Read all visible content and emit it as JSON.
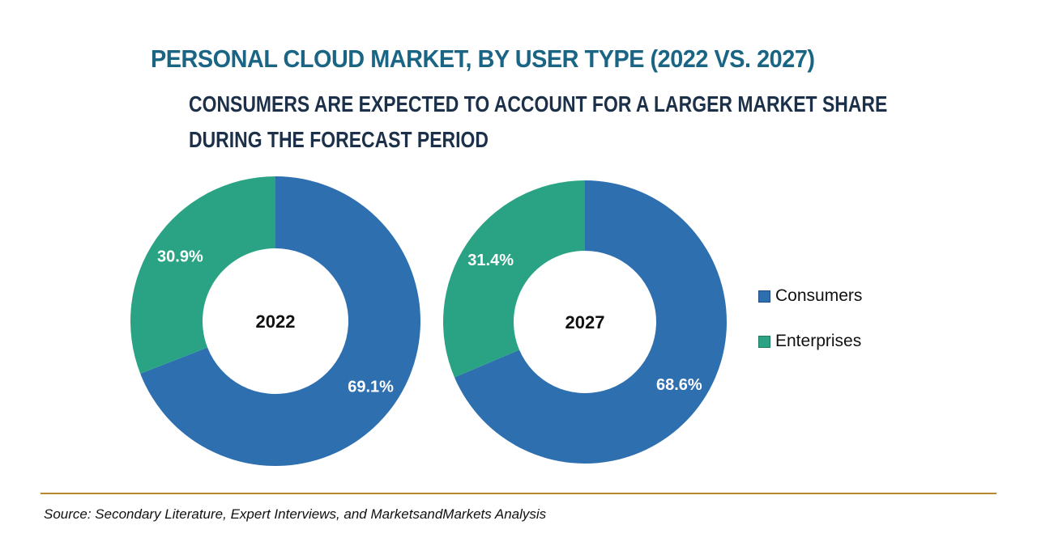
{
  "chart_data": {
    "type": "pie",
    "title": "PERSONAL CLOUD MARKET, BY USER TYPE (2022 VS. 2027)",
    "subtitle": [
      "CONSUMERS ARE EXPECTED TO ACCOUNT FOR A LARGER MARKET SHARE",
      "DURING THE FORECAST PERIOD"
    ],
    "legend": {
      "placement": "right",
      "entries": [
        {
          "label": "Consumers",
          "color": "#2e6fb0"
        },
        {
          "label": "Enterprises",
          "color": "#2aa384"
        }
      ]
    },
    "charts": [
      {
        "center_label": "2022",
        "slices": [
          {
            "label": "Consumers",
            "value": 69.1,
            "display": "69.1%",
            "color": "#2e6fb0"
          },
          {
            "label": "Enterprises",
            "value": 30.9,
            "display": "30.9%",
            "color": "#2aa384"
          }
        ]
      },
      {
        "center_label": "2027",
        "slices": [
          {
            "label": "Consumers",
            "value": 68.6,
            "display": "68.6%",
            "color": "#2e6fb0"
          },
          {
            "label": "Enterprises",
            "value": 31.4,
            "display": "31.4%",
            "color": "#2aa384"
          }
        ]
      }
    ]
  },
  "footer": {
    "source": "Source: Secondary Literature, Expert Interviews, and MarketsandMarkets Analysis"
  }
}
